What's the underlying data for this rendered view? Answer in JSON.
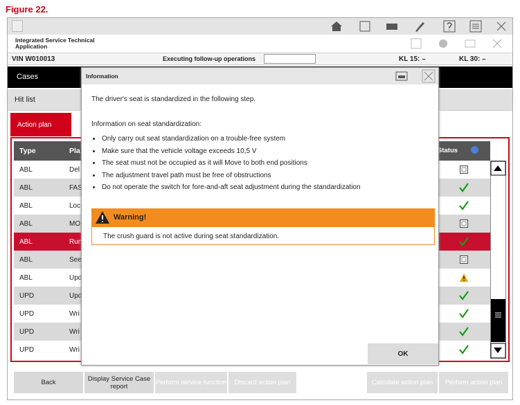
{
  "figure_label": "Figure 22.",
  "header": {
    "app_title": "Integrated Service Technical Application",
    "vin": "VIN  W010013",
    "status": "Executing follow-up operations",
    "kl15": "KL 15:  –",
    "kl30": "KL 30:  –"
  },
  "nav": {
    "cases": "Cases",
    "hit_list": "Hit list",
    "action_plan": "Action plan"
  },
  "table": {
    "columns": [
      "Type",
      "Pla",
      "Status"
    ],
    "rows": [
      [
        "ABL",
        "Del"
      ],
      [
        "ABL",
        "FAS"
      ],
      [
        "ABL",
        "Loc"
      ],
      [
        "ABL",
        "MO"
      ],
      [
        "ABL",
        "Run"
      ],
      [
        "ABL",
        "See"
      ],
      [
        "ABL",
        "Upd"
      ],
      [
        "UPD",
        "Upd"
      ],
      [
        "UPD",
        "Wri"
      ],
      [
        "UPD",
        "Wri"
      ],
      [
        "UPD",
        "Wri"
      ]
    ]
  },
  "buttons": [
    "Back",
    "Display Service Case report",
    "Perform service function",
    "Discard action plan",
    "Calculate action plan",
    "Perform action plan"
  ],
  "dialog": {
    "title": "Information",
    "intro": "The driver's seat is standardized in the following step.",
    "info_heading": "Information on seat standardization:",
    "bullets": [
      "Only carry out seat standardization on a trouble-free system",
      "Make sure that the vehicle voltage exceeds 10,5 V",
      "The seat must not be occupied as it will Move to both end positions",
      "The adjustment travel path must be free of obstructions",
      "Do not operate the switch for fore-and-aft seat adjustment during the standardization"
    ],
    "warning_title": "Warning!",
    "warning_text": "The crush guard is not active during seat standardization.",
    "ok": "OK"
  }
}
